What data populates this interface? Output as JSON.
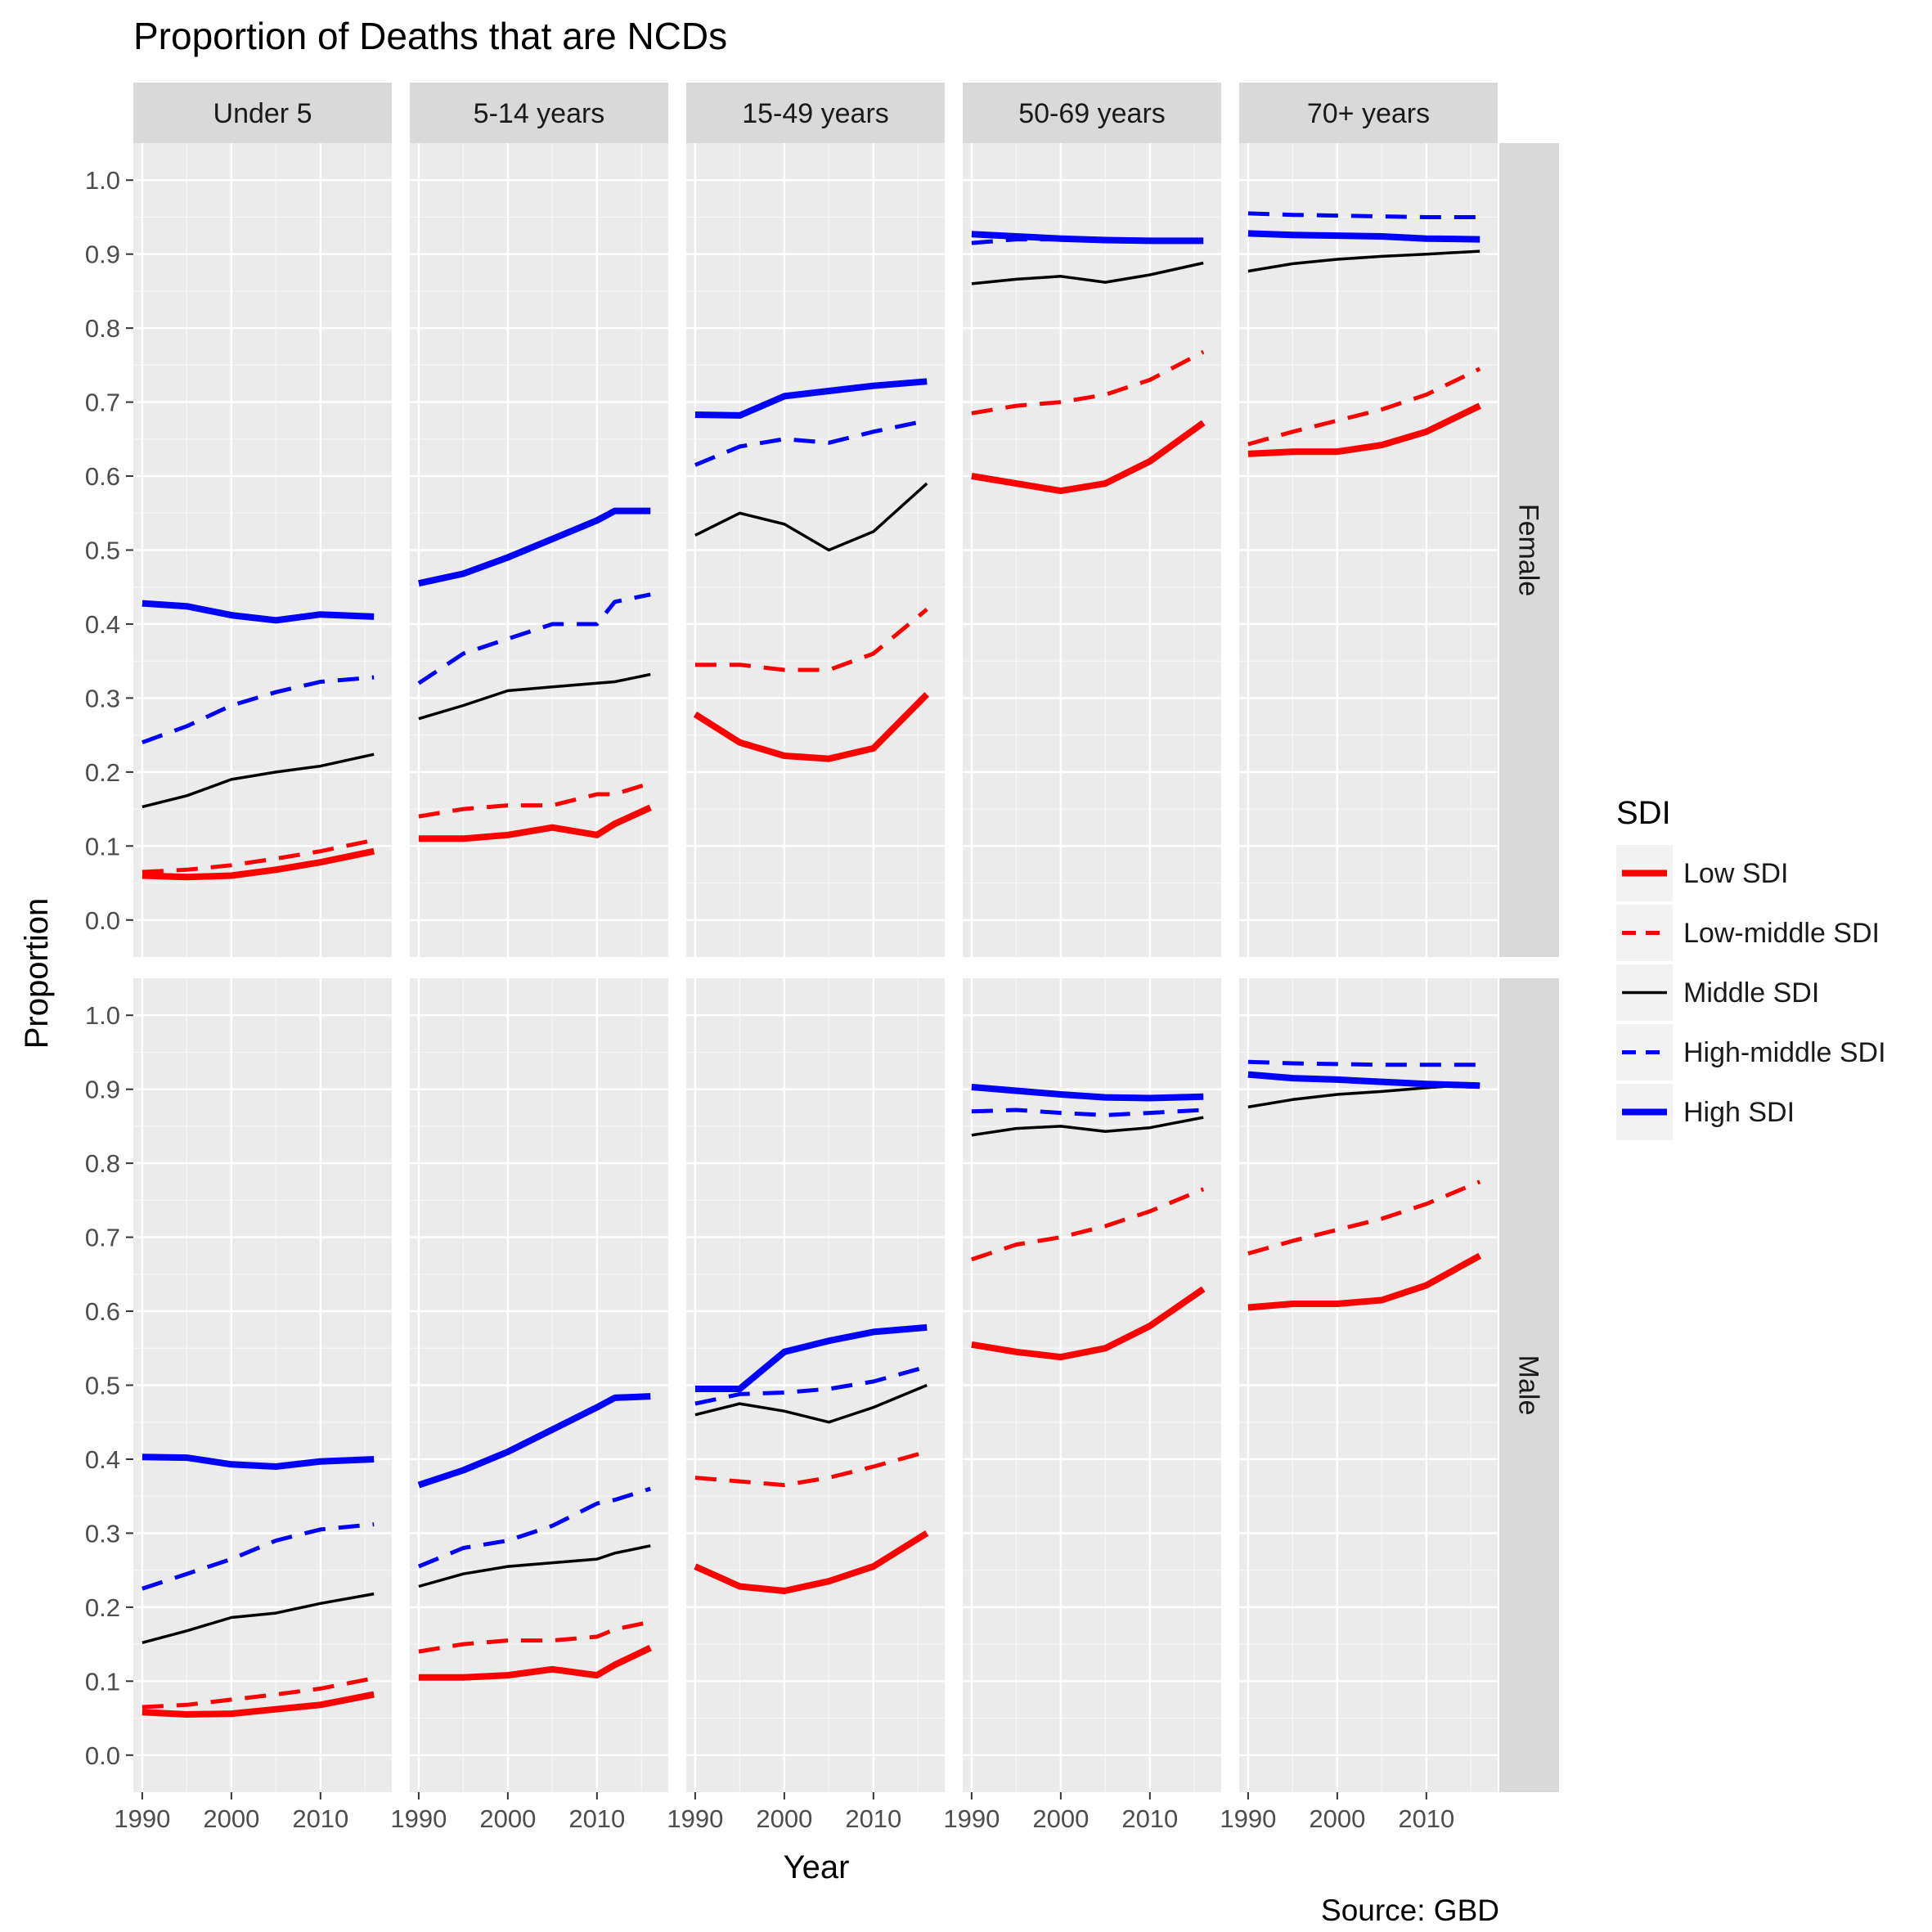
{
  "chart_data": {
    "type": "line",
    "title": "Proportion of Deaths that are NCDs",
    "xlabel": "Year",
    "ylabel": "Proportion",
    "caption": "Source: GBD",
    "xlim": [
      1989,
      2018
    ],
    "ylim": [
      -0.05,
      1.05
    ],
    "x_ticks": [
      1990,
      2000,
      2010
    ],
    "y_ticks": [
      0.0,
      0.1,
      0.2,
      0.3,
      0.4,
      0.5,
      0.6,
      0.7,
      0.8,
      0.9,
      1.0
    ],
    "y_tick_labels": [
      "0.0",
      "0.1",
      "0.2",
      "0.3",
      "0.4",
      "0.5",
      "0.6",
      "0.7",
      "0.8",
      "0.9",
      "1.0"
    ],
    "grid": true,
    "col_facets": [
      "Under 5",
      "5-14 years",
      "15-49 years",
      "50-69 years",
      "70+ years"
    ],
    "row_facets": [
      "Female",
      "Male"
    ],
    "legend": {
      "title": "SDI",
      "position": "right",
      "entries": [
        {
          "label": "Low SDI",
          "color": "#ff0000",
          "style": "solid",
          "weight": "thick"
        },
        {
          "label": "Low-middle SDI",
          "color": "#ff0000",
          "style": "dashed",
          "weight": "medium"
        },
        {
          "label": "Middle SDI",
          "color": "#000000",
          "style": "solid",
          "weight": "thin"
        },
        {
          "label": "High-middle SDI",
          "color": "#0000ff",
          "style": "dashed",
          "weight": "medium"
        },
        {
          "label": "High SDI",
          "color": "#0000ff",
          "style": "solid",
          "weight": "thick"
        }
      ]
    },
    "series_keys": [
      "Low SDI",
      "Low-middle SDI",
      "Middle SDI",
      "High-middle SDI",
      "High SDI"
    ],
    "panels": [
      {
        "row": "Female",
        "col": "Under 5",
        "x": [
          1990,
          1995,
          2000,
          2005,
          2010,
          2016
        ],
        "lines": {
          "Low SDI": [
            0.06,
            0.058,
            0.06,
            0.068,
            0.078,
            0.093
          ],
          "Low-middle SDI": [
            0.065,
            0.068,
            0.074,
            0.083,
            0.093,
            0.108
          ],
          "Middle SDI": [
            0.153,
            0.168,
            0.19,
            0.2,
            0.208,
            0.224
          ],
          "High-middle SDI": [
            0.24,
            0.262,
            0.29,
            0.308,
            0.322,
            0.328
          ],
          "High SDI": [
            0.428,
            0.424,
            0.412,
            0.405,
            0.413,
            0.41
          ]
        }
      },
      {
        "row": "Female",
        "col": "5-14 years",
        "x": [
          1990,
          1995,
          2000,
          2005,
          2010,
          2012,
          2016
        ],
        "lines": {
          "Low SDI": [
            0.11,
            0.11,
            0.115,
            0.125,
            0.115,
            0.13,
            0.152
          ],
          "Low-middle SDI": [
            0.14,
            0.15,
            0.155,
            0.155,
            0.17,
            0.17,
            0.185
          ],
          "Middle SDI": [
            0.272,
            0.29,
            0.31,
            0.315,
            0.32,
            0.322,
            0.332
          ],
          "High-middle SDI": [
            0.32,
            0.36,
            0.38,
            0.4,
            0.4,
            0.43,
            0.44
          ],
          "High SDI": [
            0.455,
            0.468,
            0.49,
            0.515,
            0.54,
            0.553,
            0.553
          ]
        }
      },
      {
        "row": "Female",
        "col": "15-49 years",
        "x": [
          1990,
          1995,
          2000,
          2005,
          2010,
          2016
        ],
        "lines": {
          "Low SDI": [
            0.278,
            0.24,
            0.222,
            0.218,
            0.232,
            0.305
          ],
          "Low-middle SDI": [
            0.345,
            0.345,
            0.338,
            0.338,
            0.36,
            0.42
          ],
          "Middle SDI": [
            0.52,
            0.55,
            0.535,
            0.5,
            0.525,
            0.59
          ],
          "High-middle SDI": [
            0.615,
            0.64,
            0.65,
            0.645,
            0.66,
            0.675
          ],
          "High SDI": [
            0.683,
            0.682,
            0.708,
            0.715,
            0.722,
            0.728
          ]
        }
      },
      {
        "row": "Female",
        "col": "50-69 years",
        "x": [
          1990,
          1995,
          2000,
          2005,
          2010,
          2016
        ],
        "lines": {
          "Low SDI": [
            0.6,
            0.59,
            0.58,
            0.59,
            0.62,
            0.672
          ],
          "Low-middle SDI": [
            0.685,
            0.695,
            0.7,
            0.71,
            0.73,
            0.768
          ],
          "Middle SDI": [
            0.86,
            0.866,
            0.87,
            0.862,
            0.872,
            0.888
          ],
          "High-middle SDI": [
            0.915,
            0.92,
            0.92,
            0.918,
            0.918,
            0.918
          ],
          "High SDI": [
            0.927,
            0.924,
            0.921,
            0.919,
            0.918,
            0.918
          ]
        }
      },
      {
        "row": "Female",
        "col": "70+ years",
        "x": [
          1990,
          1995,
          2000,
          2005,
          2010,
          2016
        ],
        "lines": {
          "Low SDI": [
            0.63,
            0.633,
            0.633,
            0.642,
            0.66,
            0.695
          ],
          "Low-middle SDI": [
            0.643,
            0.66,
            0.675,
            0.69,
            0.71,
            0.745
          ],
          "Middle SDI": [
            0.877,
            0.887,
            0.893,
            0.897,
            0.9,
            0.904
          ],
          "High-middle SDI": [
            0.955,
            0.953,
            0.952,
            0.951,
            0.95,
            0.95
          ],
          "High SDI": [
            0.928,
            0.926,
            0.925,
            0.924,
            0.921,
            0.92
          ]
        }
      },
      {
        "row": "Male",
        "col": "Under 5",
        "x": [
          1990,
          1995,
          2000,
          2005,
          2010,
          2016
        ],
        "lines": {
          "Low SDI": [
            0.058,
            0.055,
            0.056,
            0.062,
            0.068,
            0.082
          ],
          "Low-middle SDI": [
            0.065,
            0.068,
            0.075,
            0.082,
            0.09,
            0.104
          ],
          "Middle SDI": [
            0.152,
            0.168,
            0.186,
            0.192,
            0.205,
            0.218
          ],
          "High-middle SDI": [
            0.225,
            0.245,
            0.265,
            0.29,
            0.305,
            0.312
          ],
          "High SDI": [
            0.403,
            0.402,
            0.393,
            0.39,
            0.397,
            0.4
          ]
        }
      },
      {
        "row": "Male",
        "col": "5-14 years",
        "x": [
          1990,
          1995,
          2000,
          2005,
          2010,
          2012,
          2016
        ],
        "lines": {
          "Low SDI": [
            0.105,
            0.105,
            0.108,
            0.116,
            0.108,
            0.122,
            0.145
          ],
          "Low-middle SDI": [
            0.14,
            0.15,
            0.155,
            0.155,
            0.16,
            0.17,
            0.18
          ],
          "Middle SDI": [
            0.228,
            0.245,
            0.255,
            0.26,
            0.265,
            0.273,
            0.283
          ],
          "High-middle SDI": [
            0.255,
            0.28,
            0.29,
            0.31,
            0.34,
            0.345,
            0.36
          ],
          "High SDI": [
            0.365,
            0.385,
            0.41,
            0.44,
            0.47,
            0.483,
            0.485
          ]
        }
      },
      {
        "row": "Male",
        "col": "15-49 years",
        "x": [
          1990,
          1995,
          2000,
          2005,
          2010,
          2016
        ],
        "lines": {
          "Low SDI": [
            0.255,
            0.228,
            0.222,
            0.235,
            0.255,
            0.3
          ],
          "Low-middle SDI": [
            0.375,
            0.37,
            0.365,
            0.375,
            0.39,
            0.41
          ],
          "Middle SDI": [
            0.46,
            0.475,
            0.465,
            0.45,
            0.47,
            0.5
          ],
          "High-middle SDI": [
            0.475,
            0.488,
            0.49,
            0.495,
            0.505,
            0.525
          ],
          "High SDI": [
            0.495,
            0.495,
            0.545,
            0.56,
            0.572,
            0.578
          ]
        }
      },
      {
        "row": "Male",
        "col": "50-69 years",
        "x": [
          1990,
          1995,
          2000,
          2005,
          2010,
          2016
        ],
        "lines": {
          "Low SDI": [
            0.555,
            0.545,
            0.538,
            0.55,
            0.58,
            0.63
          ],
          "Low-middle SDI": [
            0.67,
            0.69,
            0.7,
            0.715,
            0.735,
            0.765
          ],
          "Middle SDI": [
            0.838,
            0.847,
            0.85,
            0.843,
            0.848,
            0.862
          ],
          "High-middle SDI": [
            0.87,
            0.872,
            0.868,
            0.865,
            0.868,
            0.872
          ],
          "High SDI": [
            0.903,
            0.898,
            0.893,
            0.889,
            0.888,
            0.89
          ]
        }
      },
      {
        "row": "Male",
        "col": "70+ years",
        "x": [
          1990,
          1995,
          2000,
          2005,
          2010,
          2016
        ],
        "lines": {
          "Low SDI": [
            0.605,
            0.61,
            0.61,
            0.615,
            0.635,
            0.675
          ],
          "Low-middle SDI": [
            0.678,
            0.695,
            0.71,
            0.725,
            0.745,
            0.775
          ],
          "Middle SDI": [
            0.876,
            0.886,
            0.893,
            0.897,
            0.902,
            0.907
          ],
          "High-middle SDI": [
            0.937,
            0.935,
            0.934,
            0.933,
            0.933,
            0.933
          ],
          "High SDI": [
            0.92,
            0.915,
            0.913,
            0.91,
            0.907,
            0.905
          ]
        }
      }
    ]
  }
}
